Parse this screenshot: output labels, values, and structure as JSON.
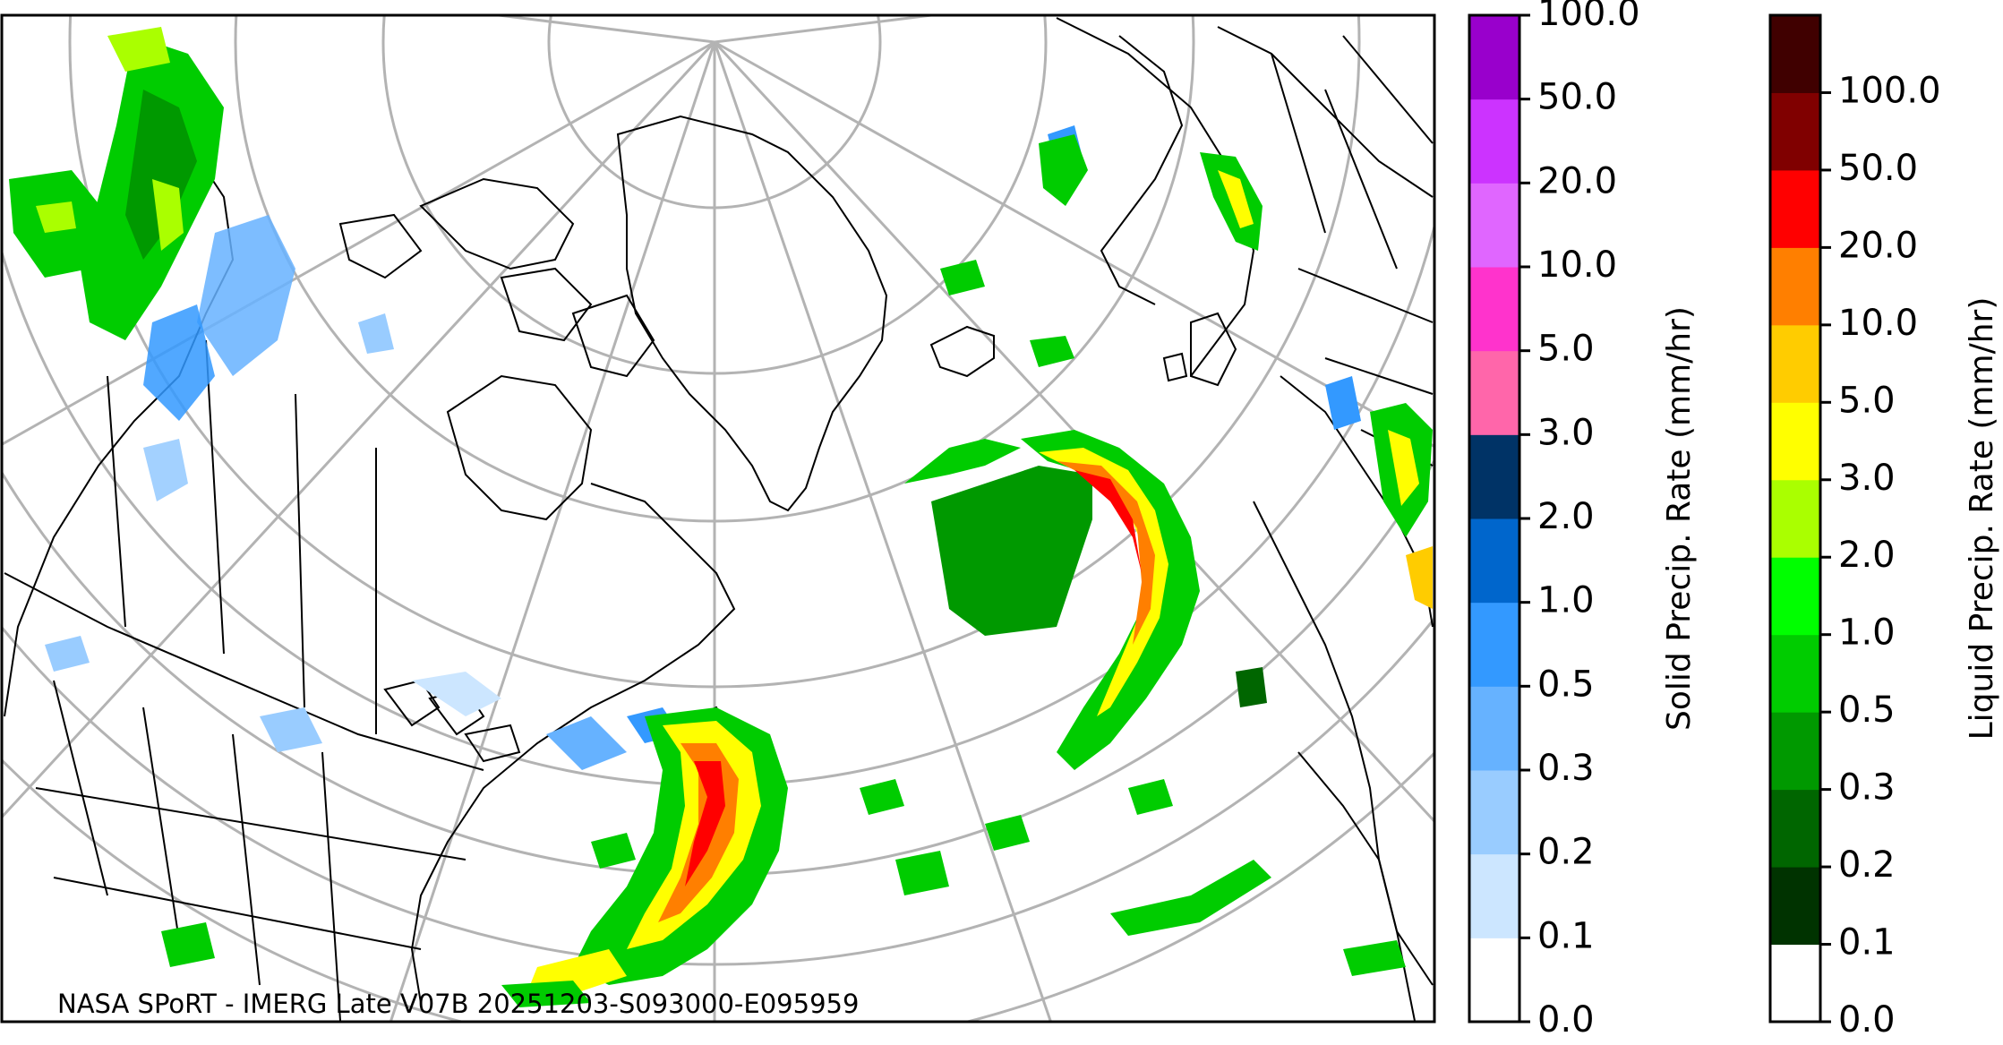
{
  "credit": "NASA SPoRT - IMERG Late V07B 20251203-S093000-E095959",
  "solid_colorbar": {
    "title": "Solid Precip. Rate (mm/hr)",
    "ticks": [
      "0.0",
      "0.1",
      "0.2",
      "0.3",
      "0.5",
      "1.0",
      "2.0",
      "3.0",
      "5.0",
      "10.0",
      "20.0",
      "50.0",
      "100.0"
    ],
    "colors": [
      "#ffffff",
      "#cce6ff",
      "#99ccff",
      "#66b2ff",
      "#3399ff",
      "#0066cc",
      "#003366",
      "#ff66aa",
      "#ff33cc",
      "#e066ff",
      "#cc33ff",
      "#9900cc"
    ]
  },
  "liquid_colorbar": {
    "title": "Liquid Precip. Rate (mm/hr)",
    "ticks": [
      "0.0",
      "0.1",
      "0.2",
      "0.3",
      "0.5",
      "1.0",
      "2.0",
      "3.0",
      "5.0",
      "10.0",
      "20.0",
      "50.0",
      "100.0"
    ],
    "colors": [
      "#ffffff",
      "#003300",
      "#006600",
      "#009900",
      "#00cc00",
      "#00ff00",
      "#aaff00",
      "#ffff00",
      "#ffcc00",
      "#ff7f00",
      "#ff0000",
      "#800000",
      "#400000"
    ]
  }
}
